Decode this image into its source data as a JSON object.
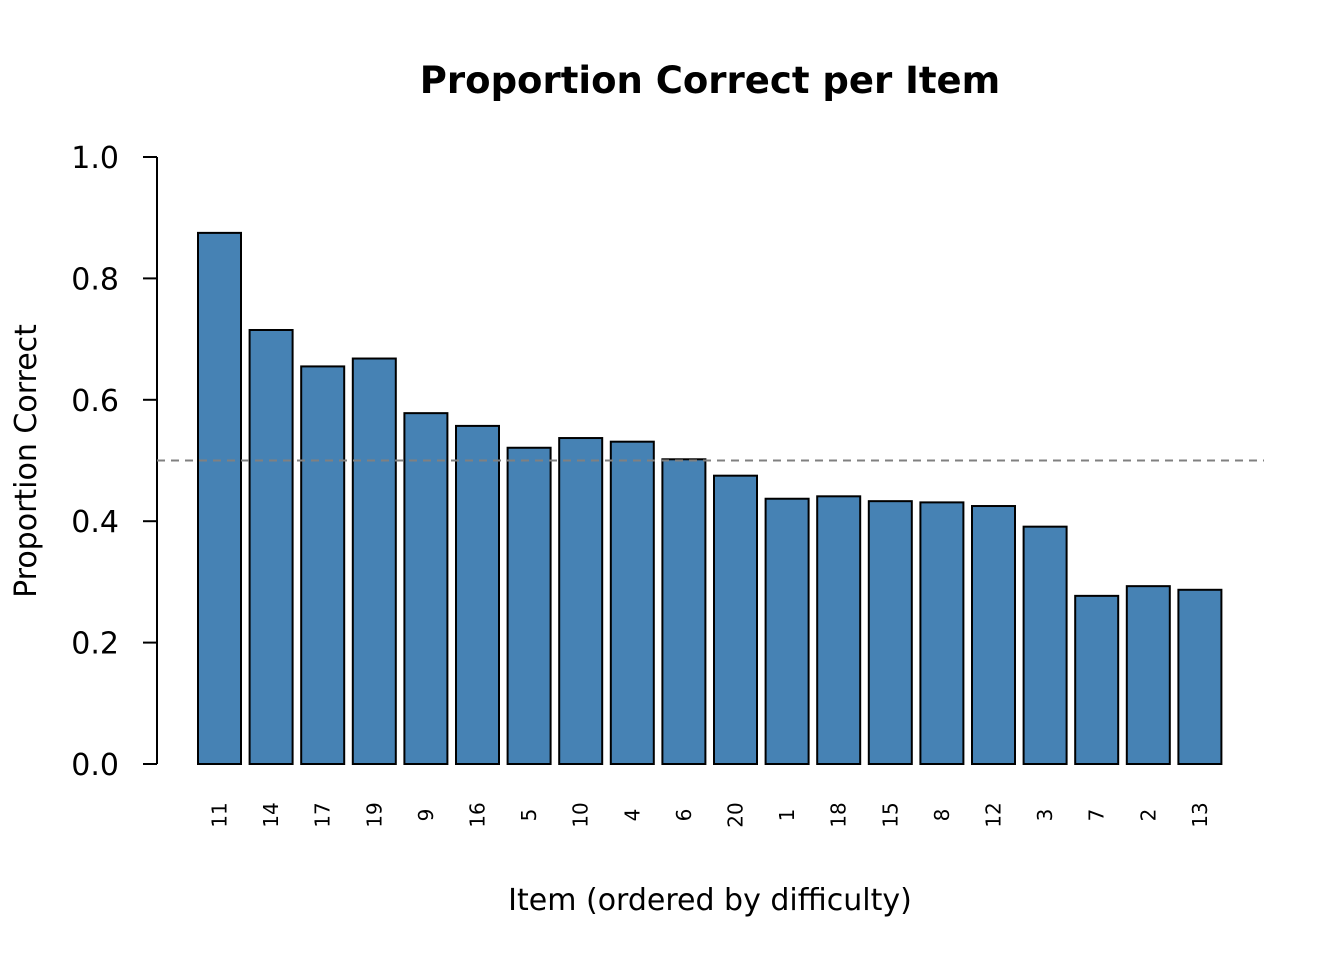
{
  "chart_data": {
    "type": "bar",
    "title": "Proportion Correct per Item",
    "xlabel": "Item (ordered by difficulty)",
    "ylabel": "Proportion Correct",
    "categories": [
      "11",
      "14",
      "17",
      "19",
      "9",
      "16",
      "5",
      "10",
      "4",
      "6",
      "20",
      "1",
      "18",
      "15",
      "8",
      "12",
      "3",
      "7",
      "2",
      "13"
    ],
    "values": [
      0.875,
      0.715,
      0.655,
      0.668,
      0.578,
      0.557,
      0.521,
      0.537,
      0.531,
      0.502,
      0.475,
      0.437,
      0.441,
      0.433,
      0.431,
      0.425,
      0.391,
      0.277,
      0.293,
      0.287
    ],
    "yticks": [
      "0.0",
      "0.2",
      "0.4",
      "0.6",
      "0.8",
      "1.0"
    ],
    "ylim": [
      0,
      1
    ],
    "reference_line": 0.5,
    "grid": false,
    "colors": {
      "bar_fill": "#4682B4",
      "bar_stroke": "#000000",
      "reference_line": "#808080"
    }
  }
}
